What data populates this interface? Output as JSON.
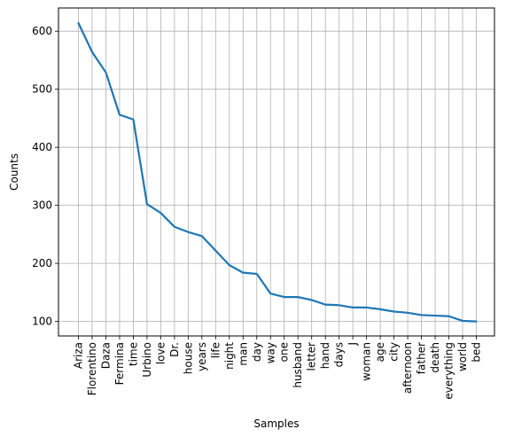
{
  "chart_data": {
    "type": "line",
    "xlabel": "Samples",
    "ylabel": "Counts",
    "ylim": [
      75,
      640
    ],
    "yticks": [
      100,
      200,
      300,
      400,
      500,
      600
    ],
    "grid": true,
    "line_color": "#1f77b4",
    "grid_color": "#b0b0b0",
    "categories": [
      "Ariza",
      "Florentino",
      "Daza",
      "Fermina",
      "time",
      "Urbino",
      "love",
      "Dr.",
      "house",
      "years",
      "life",
      "night",
      "man",
      "day",
      "way",
      "one",
      "husband",
      "letter",
      "hand",
      "days",
      "J",
      "woman",
      "age",
      "city",
      "afternoon",
      "father",
      "death",
      "everything",
      "world",
      "bed"
    ],
    "series": [
      {
        "values": [
          614,
          564,
          529,
          456,
          448,
          302,
          287,
          263,
          254,
          247,
          222,
          197,
          184,
          182,
          148,
          142,
          142,
          137,
          129,
          128,
          124,
          124,
          121,
          117,
          115,
          111,
          110,
          109,
          101,
          100
        ]
      }
    ]
  }
}
